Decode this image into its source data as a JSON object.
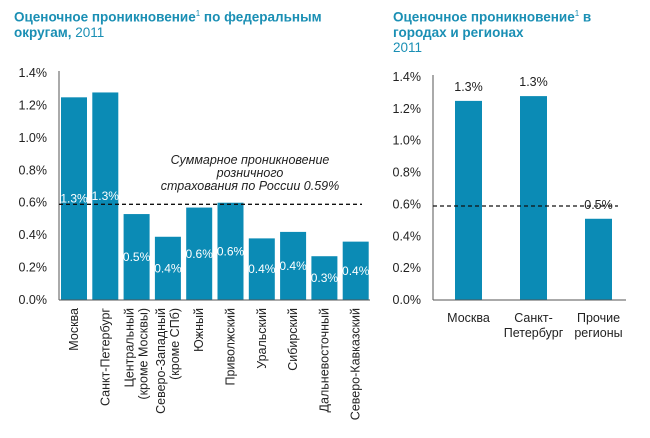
{
  "left_title": {
    "bold": "Оценочное проникновение",
    "sup": "1",
    "bold2": " по федеральным округам,",
    "year": " 2011"
  },
  "right_title": {
    "bold": "Оценочное проникновение",
    "sup": "1",
    "bold2": " в городах и регионах",
    "year": "2011"
  },
  "colors": {
    "bar": "#0b8bb5",
    "title": "#1a8fb4"
  },
  "chart_data": [
    {
      "type": "bar",
      "title": "Оценочное проникновение по федеральным округам, 2011",
      "categories": [
        [
          "Москва"
        ],
        [
          "Санкт-Петербург"
        ],
        [
          "Центральный",
          "(кроме Москвы)"
        ],
        [
          "Северо-Западный",
          "(кроме СПб)"
        ],
        [
          "Южный"
        ],
        [
          "Приволжский"
        ],
        [
          "Уральский"
        ],
        [
          "Сибирский"
        ],
        [
          "Дальневосточный"
        ],
        [
          "Северо-Кавказский"
        ]
      ],
      "values": [
        1.25,
        1.28,
        0.53,
        0.39,
        0.57,
        0.6,
        0.38,
        0.42,
        0.27,
        0.36
      ],
      "labels": [
        "1.3%",
        "1.3%",
        "0.5%",
        "0.4%",
        "0.6%",
        "0.6%",
        "0.4%",
        "0.4%",
        "0.3%",
        "0.4%"
      ],
      "yticks": [
        "0.0%",
        "0.2%",
        "0.4%",
        "0.6%",
        "0.8%",
        "1.0%",
        "1.2%",
        "1.4%"
      ],
      "ylim": [
        0,
        1.4
      ],
      "reference_line": 0.59,
      "annotation": [
        "Суммарное проникновение",
        "розничного",
        "страхования по России 0.59%"
      ]
    },
    {
      "type": "bar",
      "title": "Оценочное проникновение в городах и регионах 2011",
      "categories": [
        [
          "Москва"
        ],
        [
          "Санкт-",
          "Петербург"
        ],
        [
          "Прочие",
          "регионы"
        ]
      ],
      "values": [
        1.25,
        1.28,
        0.51
      ],
      "labels": [
        "1.3%",
        "1.3%",
        "0.5%"
      ],
      "yticks": [
        "0.0%",
        "0.2%",
        "0.4%",
        "0.6%",
        "0.8%",
        "1.0%",
        "1.2%",
        "1.4%"
      ],
      "ylim": [
        0,
        1.4
      ],
      "reference_line": 0.59
    }
  ]
}
